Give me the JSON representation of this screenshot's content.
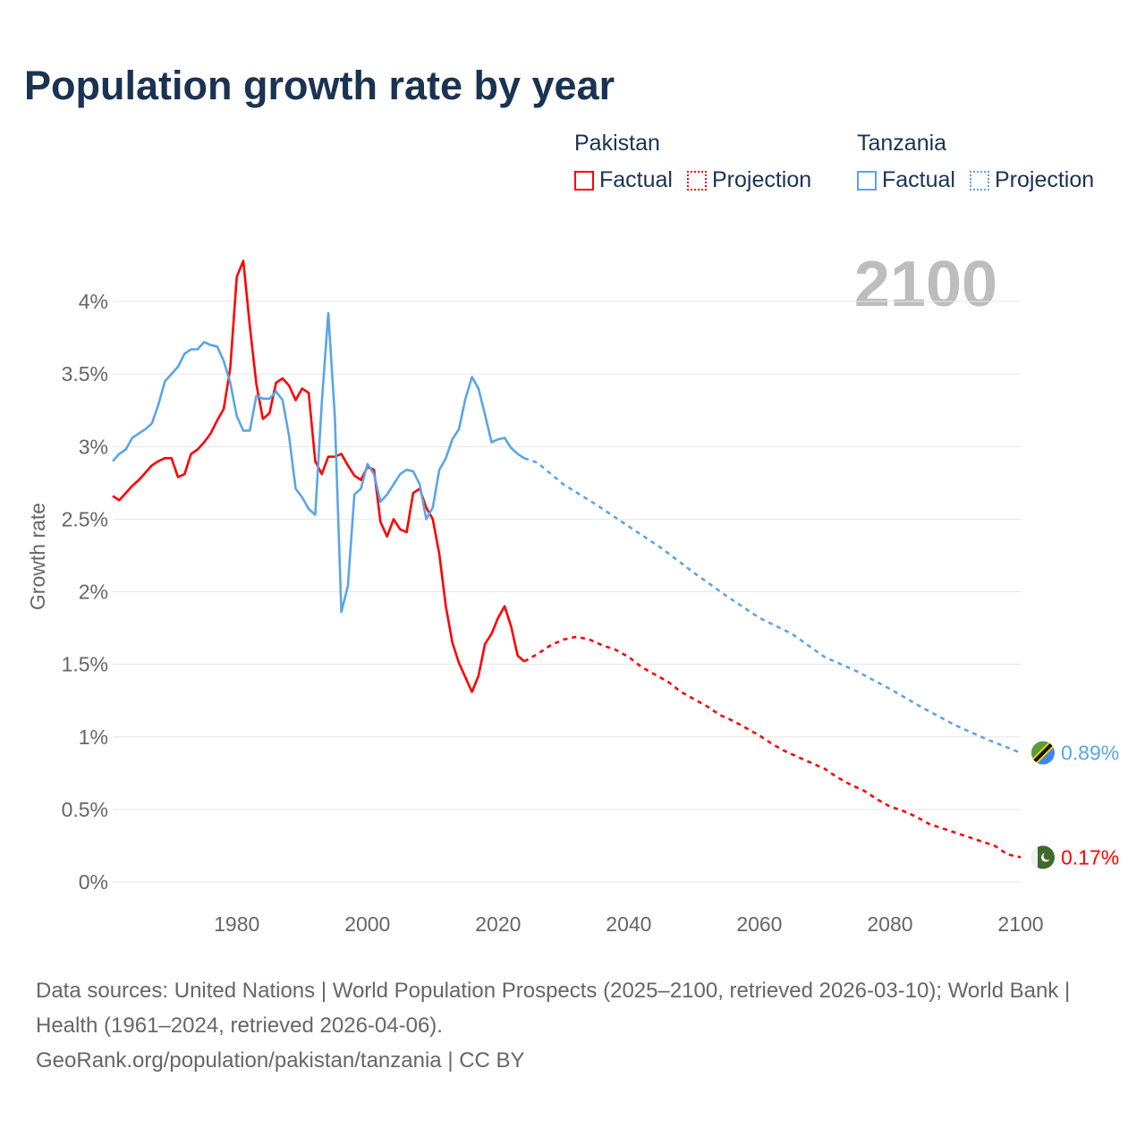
{
  "title": "Population growth rate by year",
  "legend": {
    "groups": [
      {
        "name": "Pakistan",
        "factual": "Factual",
        "projection": "Projection",
        "color": "#ff0000"
      },
      {
        "name": "Tanzania",
        "factual": "Factual",
        "projection": "Projection",
        "color": "#5aa5e8"
      }
    ]
  },
  "footer": {
    "sources": "Data sources: United Nations | World Population Prospects (2025–2100, retrieved 2026-03-10); World Bank | Health (1961–2024, retrieved 2026-04-06).",
    "link": "GeoRank.org/population/pakistan/tanzania | CC BY"
  },
  "chart_data": {
    "type": "line",
    "title": "Population growth rate by year",
    "xlabel": "",
    "ylabel": "Growth rate",
    "year_label": "2100",
    "xlim": [
      1961,
      2100
    ],
    "ylim": [
      0,
      4.3
    ],
    "x_ticks": [
      "1980",
      "2000",
      "2020",
      "2040",
      "2060",
      "2080",
      "2100"
    ],
    "y_ticks": [
      "0%",
      "0.5%",
      "1%",
      "1.5%",
      "2%",
      "2.5%",
      "3%",
      "3.5%",
      "4%"
    ],
    "grid": true,
    "legend_position": "top-right",
    "series": [
      {
        "name": "Pakistan",
        "color": "#ff0000",
        "end_label": "0.17%",
        "factual": {
          "x": [
            1961,
            1962,
            1963,
            1964,
            1965,
            1966,
            1967,
            1968,
            1969,
            1970,
            1971,
            1972,
            1973,
            1974,
            1975,
            1976,
            1977,
            1978,
            1979,
            1980,
            1981,
            1982,
            1983,
            1984,
            1985,
            1986,
            1987,
            1988,
            1989,
            1990,
            1991,
            1992,
            1993,
            1994,
            1995,
            1996,
            1997,
            1998,
            1999,
            2000,
            2001,
            2002,
            2003,
            2004,
            2005,
            2006,
            2007,
            2008,
            2009,
            2010,
            2011,
            2012,
            2013,
            2014,
            2015,
            2016,
            2017,
            2018,
            2019,
            2020,
            2021,
            2022,
            2023,
            2024
          ],
          "y": [
            2.66,
            2.63,
            2.68,
            2.73,
            2.77,
            2.82,
            2.87,
            2.9,
            2.92,
            2.92,
            2.79,
            2.81,
            2.95,
            2.98,
            3.03,
            3.09,
            3.18,
            3.26,
            3.54,
            4.17,
            4.28,
            3.83,
            3.43,
            3.19,
            3.23,
            3.44,
            3.47,
            3.42,
            3.32,
            3.4,
            3.37,
            2.9,
            2.81,
            2.93,
            2.93,
            2.95,
            2.87,
            2.8,
            2.77,
            2.86,
            2.84,
            2.48,
            2.38,
            2.5,
            2.43,
            2.41,
            2.68,
            2.71,
            2.58,
            2.5,
            2.26,
            1.9,
            1.65,
            1.51,
            1.41,
            1.31,
            1.42,
            1.64,
            1.71,
            1.82,
            1.9,
            1.76,
            1.56,
            1.52
          ]
        },
        "projection": {
          "x": [
            2024,
            2026,
            2028,
            2030,
            2032,
            2034,
            2036,
            2038,
            2040,
            2042,
            2044,
            2046,
            2048,
            2050,
            2052,
            2054,
            2056,
            2058,
            2060,
            2062,
            2064,
            2066,
            2068,
            2070,
            2072,
            2074,
            2076,
            2078,
            2080,
            2082,
            2084,
            2086,
            2088,
            2090,
            2092,
            2094,
            2096,
            2098,
            2100
          ],
          "y": [
            1.52,
            1.57,
            1.63,
            1.67,
            1.69,
            1.67,
            1.63,
            1.6,
            1.55,
            1.48,
            1.43,
            1.38,
            1.31,
            1.26,
            1.21,
            1.15,
            1.11,
            1.06,
            1.01,
            0.95,
            0.9,
            0.86,
            0.82,
            0.78,
            0.72,
            0.67,
            0.63,
            0.57,
            0.52,
            0.49,
            0.45,
            0.4,
            0.37,
            0.34,
            0.31,
            0.28,
            0.25,
            0.19,
            0.17
          ]
        }
      },
      {
        "name": "Tanzania",
        "color": "#5aa5e8",
        "end_label": "0.89%",
        "factual": {
          "x": [
            1961,
            1962,
            1963,
            1964,
            1965,
            1966,
            1967,
            1968,
            1969,
            1970,
            1971,
            1972,
            1973,
            1974,
            1975,
            1976,
            1977,
            1978,
            1979,
            1980,
            1981,
            1982,
            1983,
            1984,
            1985,
            1986,
            1987,
            1988,
            1989,
            1990,
            1991,
            1992,
            1993,
            1994,
            1995,
            1996,
            1997,
            1998,
            1999,
            2000,
            2001,
            2002,
            2003,
            2004,
            2005,
            2006,
            2007,
            2008,
            2009,
            2010,
            2011,
            2012,
            2013,
            2014,
            2015,
            2016,
            2017,
            2018,
            2019,
            2020,
            2021,
            2022,
            2023,
            2024
          ],
          "y": [
            2.9,
            2.95,
            2.98,
            3.06,
            3.09,
            3.12,
            3.16,
            3.29,
            3.45,
            3.5,
            3.55,
            3.64,
            3.67,
            3.67,
            3.72,
            3.7,
            3.69,
            3.59,
            3.44,
            3.21,
            3.11,
            3.11,
            3.35,
            3.33,
            3.33,
            3.38,
            3.32,
            3.07,
            2.71,
            2.65,
            2.57,
            2.53,
            3.3,
            3.92,
            3.21,
            1.86,
            2.04,
            2.67,
            2.71,
            2.88,
            2.81,
            2.62,
            2.67,
            2.74,
            2.81,
            2.84,
            2.83,
            2.74,
            2.5,
            2.58,
            2.84,
            2.92,
            3.05,
            3.12,
            3.33,
            3.48,
            3.4,
            3.22,
            3.03,
            3.05,
            3.06,
            2.99,
            2.95,
            2.92
          ]
        },
        "projection": {
          "x": [
            2024,
            2026,
            2030,
            2035,
            2040,
            2045,
            2050,
            2055,
            2060,
            2065,
            2070,
            2075,
            2080,
            2085,
            2090,
            2095,
            2100
          ],
          "y": [
            2.92,
            2.89,
            2.74,
            2.6,
            2.45,
            2.3,
            2.13,
            1.97,
            1.82,
            1.71,
            1.55,
            1.45,
            1.33,
            1.2,
            1.08,
            0.98,
            0.89
          ]
        }
      }
    ]
  }
}
